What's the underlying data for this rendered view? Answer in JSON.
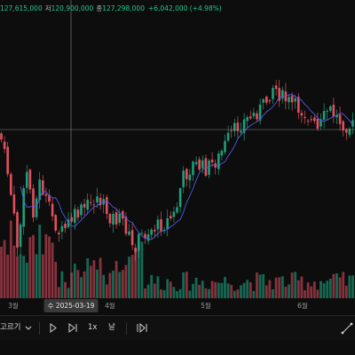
{
  "ohlc": {
    "high_value": "127,615,000",
    "low_key": "저",
    "low_value": "120,900,000",
    "close_key": "종",
    "close_value": "127,298,000",
    "change": "+6,042,000 (+4.98%)"
  },
  "colors": {
    "up": "#1f9e7a",
    "down": "#e0505e",
    "ma": "#4d5be0",
    "crosshair": "#8a8a8a"
  },
  "xaxis": {
    "labels": [
      "3월",
      "4월",
      "5월",
      "6월"
    ],
    "cursor_date": "수 2025-03-19"
  },
  "toolbar": {
    "interval_label": "고르기",
    "dropdown_icon": "chevron-down-icon",
    "play_icon": "play-icon",
    "step_icon": "step-forward-icon",
    "speed_label": "1x",
    "unit_label": "날",
    "end_icon": "skip-to-end-icon",
    "draw_icon": "line-draw-icon"
  }
}
